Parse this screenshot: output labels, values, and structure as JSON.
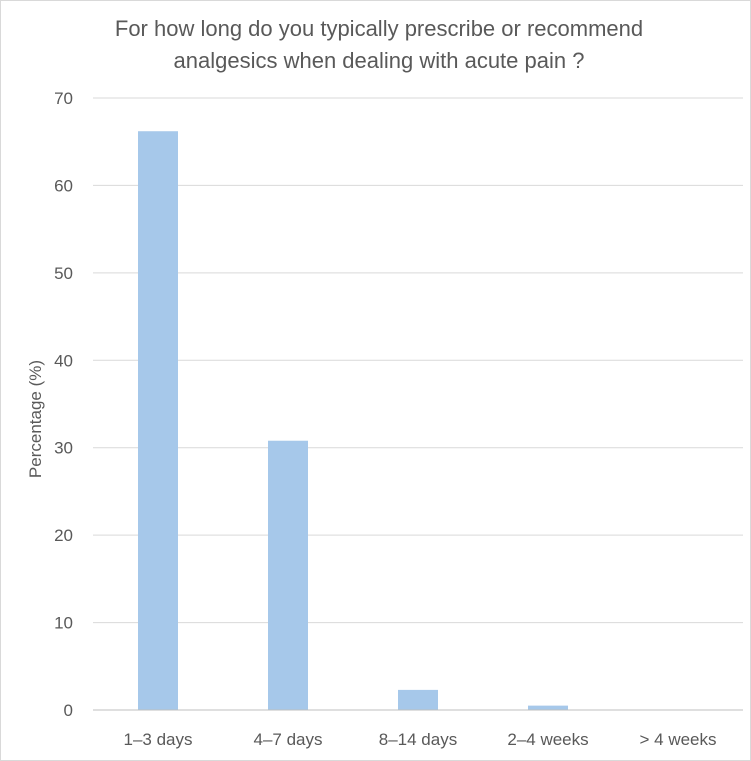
{
  "chart_data": {
    "type": "bar",
    "title": [
      "For how long do you typically prescribe or recommend",
      "analgesics when dealing with acute pain ?"
    ],
    "xlabel": "",
    "ylabel": "Percentage (%)",
    "categories": [
      "1–3 days",
      "4–7 days",
      "8–14 days",
      "2–4 weeks",
      "> 4 weeks"
    ],
    "values": [
      66.2,
      30.8,
      2.3,
      0.5,
      0
    ],
    "ylim": [
      0,
      70
    ],
    "yticks": [
      0,
      10,
      20,
      30,
      40,
      50,
      60,
      70
    ],
    "grid": true,
    "legend": "none",
    "bar_color": "#a6c8ea",
    "text_color": "#595959",
    "grid_color": "#d9d9d9"
  }
}
